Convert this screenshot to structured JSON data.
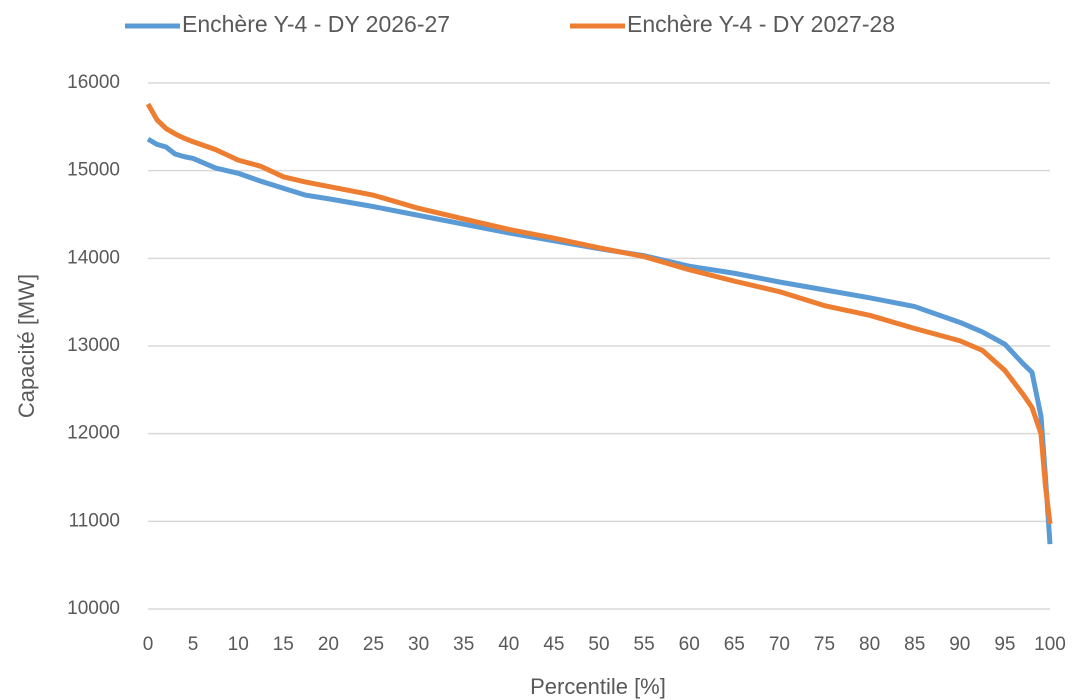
{
  "chart_data": {
    "type": "line",
    "x_label": "Percentile [%]",
    "y_label": "Capacité [MW]",
    "x": [
      0,
      1,
      2,
      3,
      4,
      5,
      7.5,
      10,
      12.5,
      15,
      17.5,
      20,
      25,
      30,
      35,
      40,
      45,
      50,
      55,
      60,
      65,
      70,
      75,
      80,
      85,
      90,
      92.5,
      95,
      97,
      98,
      99,
      99.5,
      100
    ],
    "series": [
      {
        "name": "Enchère Y-4 - DY 2026-27",
        "color": "#5b9bd5",
        "values": [
          15360,
          15300,
          15270,
          15190,
          15160,
          15140,
          15030,
          14970,
          14880,
          14800,
          14720,
          14680,
          14590,
          14490,
          14390,
          14290,
          14200,
          14110,
          14030,
          13910,
          13830,
          13730,
          13640,
          13550,
          13450,
          13270,
          13160,
          13020,
          12800,
          12700,
          12200,
          11500,
          10740
        ]
      },
      {
        "name": "Enchère Y-4 - DY 2027-28",
        "color": "#ed7d31",
        "values": [
          15760,
          15580,
          15480,
          15420,
          15370,
          15330,
          15240,
          15120,
          15050,
          14930,
          14870,
          14820,
          14720,
          14570,
          14450,
          14330,
          14230,
          14120,
          14020,
          13870,
          13740,
          13620,
          13460,
          13350,
          13200,
          13060,
          12950,
          12720,
          12450,
          12300,
          12000,
          11400,
          10970
        ]
      }
    ],
    "xlim": [
      0,
      100
    ],
    "xticks": [
      0,
      5,
      10,
      15,
      20,
      25,
      30,
      35,
      40,
      45,
      50,
      55,
      60,
      65,
      70,
      75,
      80,
      85,
      90,
      95,
      100
    ],
    "ylim": [
      10000,
      16000
    ],
    "yticks": [
      10000,
      11000,
      12000,
      13000,
      14000,
      15000,
      16000
    ],
    "grid": true,
    "legend": "top"
  }
}
